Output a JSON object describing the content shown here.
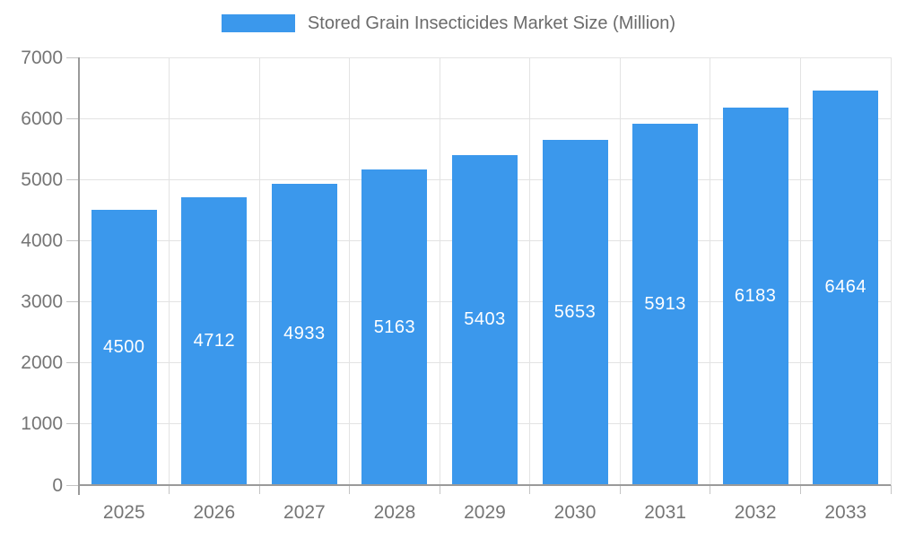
{
  "chart_data": {
    "type": "bar",
    "legend_label": "Stored Grain Insecticides Market Size (Million)",
    "categories": [
      "2025",
      "2026",
      "2027",
      "2028",
      "2029",
      "2030",
      "2031",
      "2032",
      "2033"
    ],
    "values": [
      4500,
      4712,
      4933,
      5163,
      5403,
      5653,
      5913,
      6183,
      6464
    ],
    "value_labels": [
      "4500",
      "4712",
      "4933",
      "5163",
      "5403",
      "5653",
      "5913",
      "6183",
      "6464"
    ],
    "ylim": [
      0,
      7000
    ],
    "ytick_step": 1000,
    "ytick_labels": [
      "0",
      "1000",
      "2000",
      "3000",
      "4000",
      "5000",
      "6000",
      "7000"
    ],
    "xlabel": "",
    "ylabel": "",
    "grid": "on",
    "legend_position": "top-center",
    "colors": {
      "bar": "#3b98ec",
      "grid": "#e3e3e3",
      "axis": "#9a9a9a",
      "tick": "#c4c4c4",
      "axis_text": "#757575",
      "legend_text": "#6b6b6b",
      "value_text": "#ffffff",
      "background": "#ffffff"
    }
  }
}
